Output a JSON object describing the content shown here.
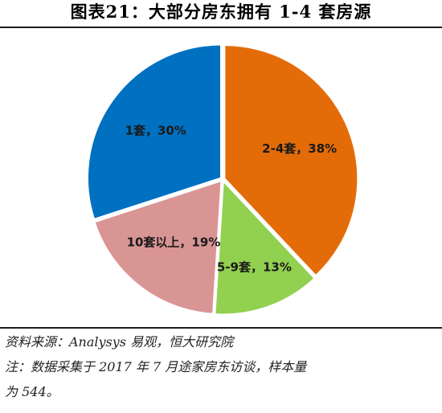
{
  "title": "图表21：大部分房东拥有 1-4 套房源",
  "chart_data": {
    "type": "pie",
    "title": "图表21：大部分房东拥有 1-4 套房源",
    "start": "12 o'clock",
    "direction": "clockwise",
    "slices": [
      {
        "label": "2-4套",
        "value": 38,
        "display": "2-4套，38%",
        "color": "#e36c09"
      },
      {
        "label": "5-9套",
        "value": 13,
        "display": "5-9套，13%",
        "color": "#92d050"
      },
      {
        "label": "10套以上",
        "value": 19,
        "display": "10套以上，19%",
        "color": "#d99594"
      },
      {
        "label": "1套",
        "value": 30,
        "display": "1套，30%",
        "color": "#0070c0"
      }
    ],
    "legend": "none"
  },
  "notes": {
    "source": "资料来源：Analysys 易观，恒大研究院",
    "note_line1": "注：数据采集于 2017 年 7 月途家房东访谈，样本量",
    "note_line2": "为 544。"
  }
}
